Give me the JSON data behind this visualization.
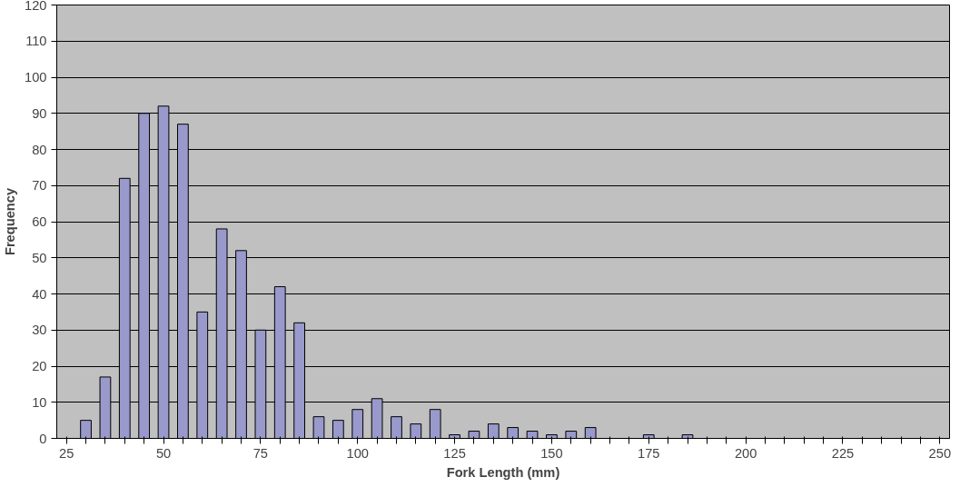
{
  "chart_data": {
    "type": "bar",
    "xlabel": "Fork Length (mm)",
    "ylabel": "Frequency",
    "categories": [
      "25",
      null,
      null,
      null,
      null,
      "50",
      null,
      null,
      null,
      null,
      "75",
      null,
      null,
      null,
      null,
      "100",
      null,
      null,
      null,
      null,
      "125",
      null,
      null,
      null,
      null,
      "150",
      null,
      null,
      null,
      null,
      "175",
      null,
      null,
      null,
      null,
      "200",
      null,
      null,
      null,
      null,
      "225",
      null,
      null,
      null,
      null,
      "250"
    ],
    "values": [
      null,
      5,
      17,
      72,
      90,
      92,
      87,
      35,
      58,
      52,
      30,
      42,
      32,
      6,
      5,
      8,
      11,
      6,
      4,
      8,
      1,
      2,
      4,
      3,
      2,
      1,
      2,
      3,
      null,
      null,
      1,
      null,
      1,
      null,
      null,
      null,
      null,
      null,
      null,
      null,
      null,
      null,
      null,
      null,
      null,
      null
    ],
    "color": "#9999cc",
    "ylim": [
      0,
      120
    ],
    "yticks": [
      0,
      10,
      20,
      30,
      40,
      50,
      60,
      70,
      80,
      90,
      100,
      110,
      120
    ],
    "grid": "y"
  }
}
